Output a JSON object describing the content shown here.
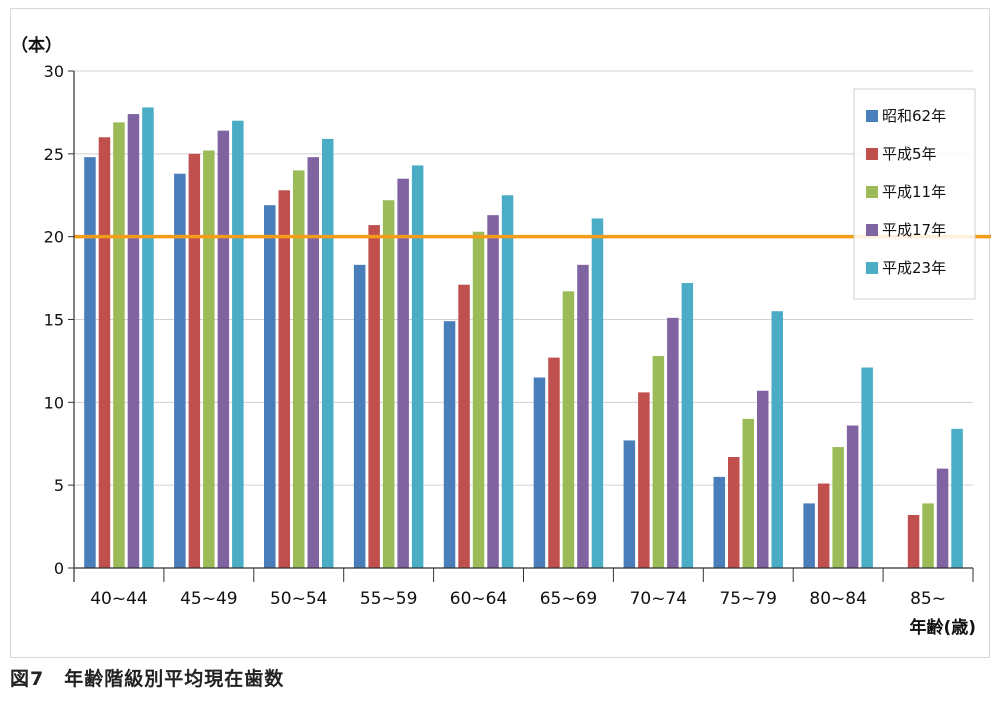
{
  "caption": "図7　年齢階級別平均現在歯数",
  "chart_data": {
    "type": "bar",
    "ylabel": "（本）",
    "xlabel": "年齢(歳)",
    "ylim": [
      0,
      30
    ],
    "yticks": [
      0,
      5,
      10,
      15,
      20,
      25,
      30
    ],
    "grid": true,
    "legend_position": "top-right",
    "reference_line": {
      "value": 20,
      "color": "#f39c1a"
    },
    "categories": [
      "40~44",
      "45~49",
      "50~54",
      "55~59",
      "60~64",
      "65~69",
      "70~74",
      "75~79",
      "80~84",
      "85~"
    ],
    "series": [
      {
        "name": "昭和62年",
        "color": "#4a7ebb",
        "values": [
          24.8,
          23.8,
          21.9,
          18.3,
          14.9,
          11.5,
          7.7,
          5.5,
          3.9,
          null
        ]
      },
      {
        "name": "平成5年",
        "color": "#c0504d",
        "values": [
          26.0,
          25.0,
          22.8,
          20.7,
          17.1,
          12.7,
          10.6,
          6.7,
          5.1,
          3.2
        ]
      },
      {
        "name": "平成11年",
        "color": "#9bbb59",
        "values": [
          26.9,
          25.2,
          24.0,
          22.2,
          20.3,
          16.7,
          12.8,
          9.0,
          7.3,
          3.9
        ]
      },
      {
        "name": "平成17年",
        "color": "#8064a2",
        "values": [
          27.4,
          26.4,
          24.8,
          23.5,
          21.3,
          18.3,
          15.1,
          10.7,
          8.6,
          6.0
        ]
      },
      {
        "name": "平成23年",
        "color": "#4bacc6",
        "values": [
          27.8,
          27.0,
          25.9,
          24.3,
          22.5,
          21.1,
          17.2,
          15.5,
          12.1,
          8.4
        ]
      }
    ]
  }
}
